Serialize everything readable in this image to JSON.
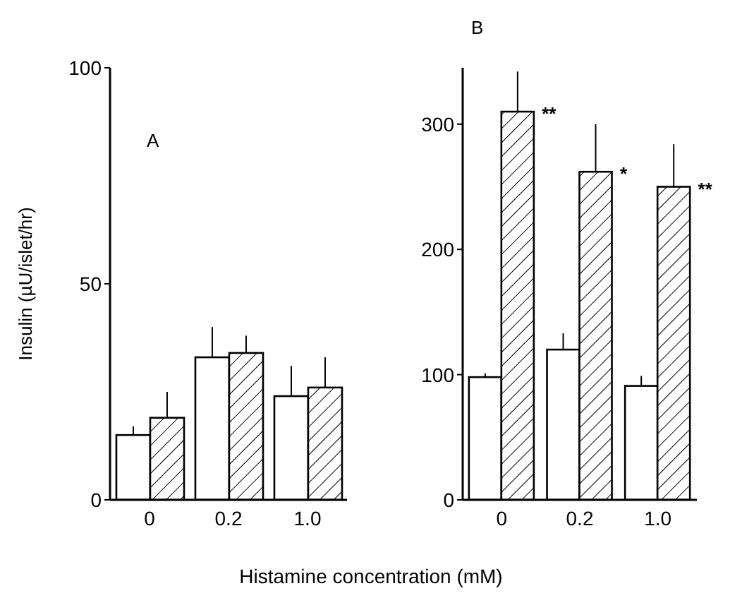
{
  "chart_data": [
    {
      "type": "bar",
      "ylabel": "Insulin (µU/islet/hr)",
      "xlabel": "Histamine concentration (mM)",
      "categories": [
        "0",
        "0.2",
        "1.0"
      ],
      "series": [
        {
          "color": "#ffffff",
          "values": [
            15,
            33,
            24
          ],
          "errors": [
            2,
            7,
            7
          ]
        },
        {
          "color": "#000000",
          "values": [
            19,
            34,
            26
          ],
          "errors": [
            6,
            4,
            7
          ]
        }
      ],
      "ylim": [
        0,
        100
      ],
      "yticks": [
        0,
        50,
        100
      ],
      "grid": false,
      "legend": false,
      "annotations": [
        "A"
      ]
    },
    {
      "type": "bar",
      "categories": [
        "0",
        "0.2",
        "1.0"
      ],
      "series": [
        {
          "color": "#ffffff",
          "values": [
            98,
            120,
            91
          ],
          "errors": [
            3,
            13,
            8
          ]
        },
        {
          "color": "#000000",
          "values": [
            310,
            262,
            250
          ],
          "errors": [
            32,
            38,
            34
          ]
        }
      ],
      "ylim": [
        0,
        345
      ],
      "yticks": [
        0,
        100,
        200,
        300
      ],
      "grid": false,
      "legend": false,
      "annotations": [
        "B",
        {
          "text": "**",
          "x": "0",
          "y": 310
        },
        {
          "text": "*",
          "x": "0.2",
          "y": 262
        },
        {
          "text": "**",
          "x": "1.0",
          "y": 250
        }
      ]
    }
  ]
}
